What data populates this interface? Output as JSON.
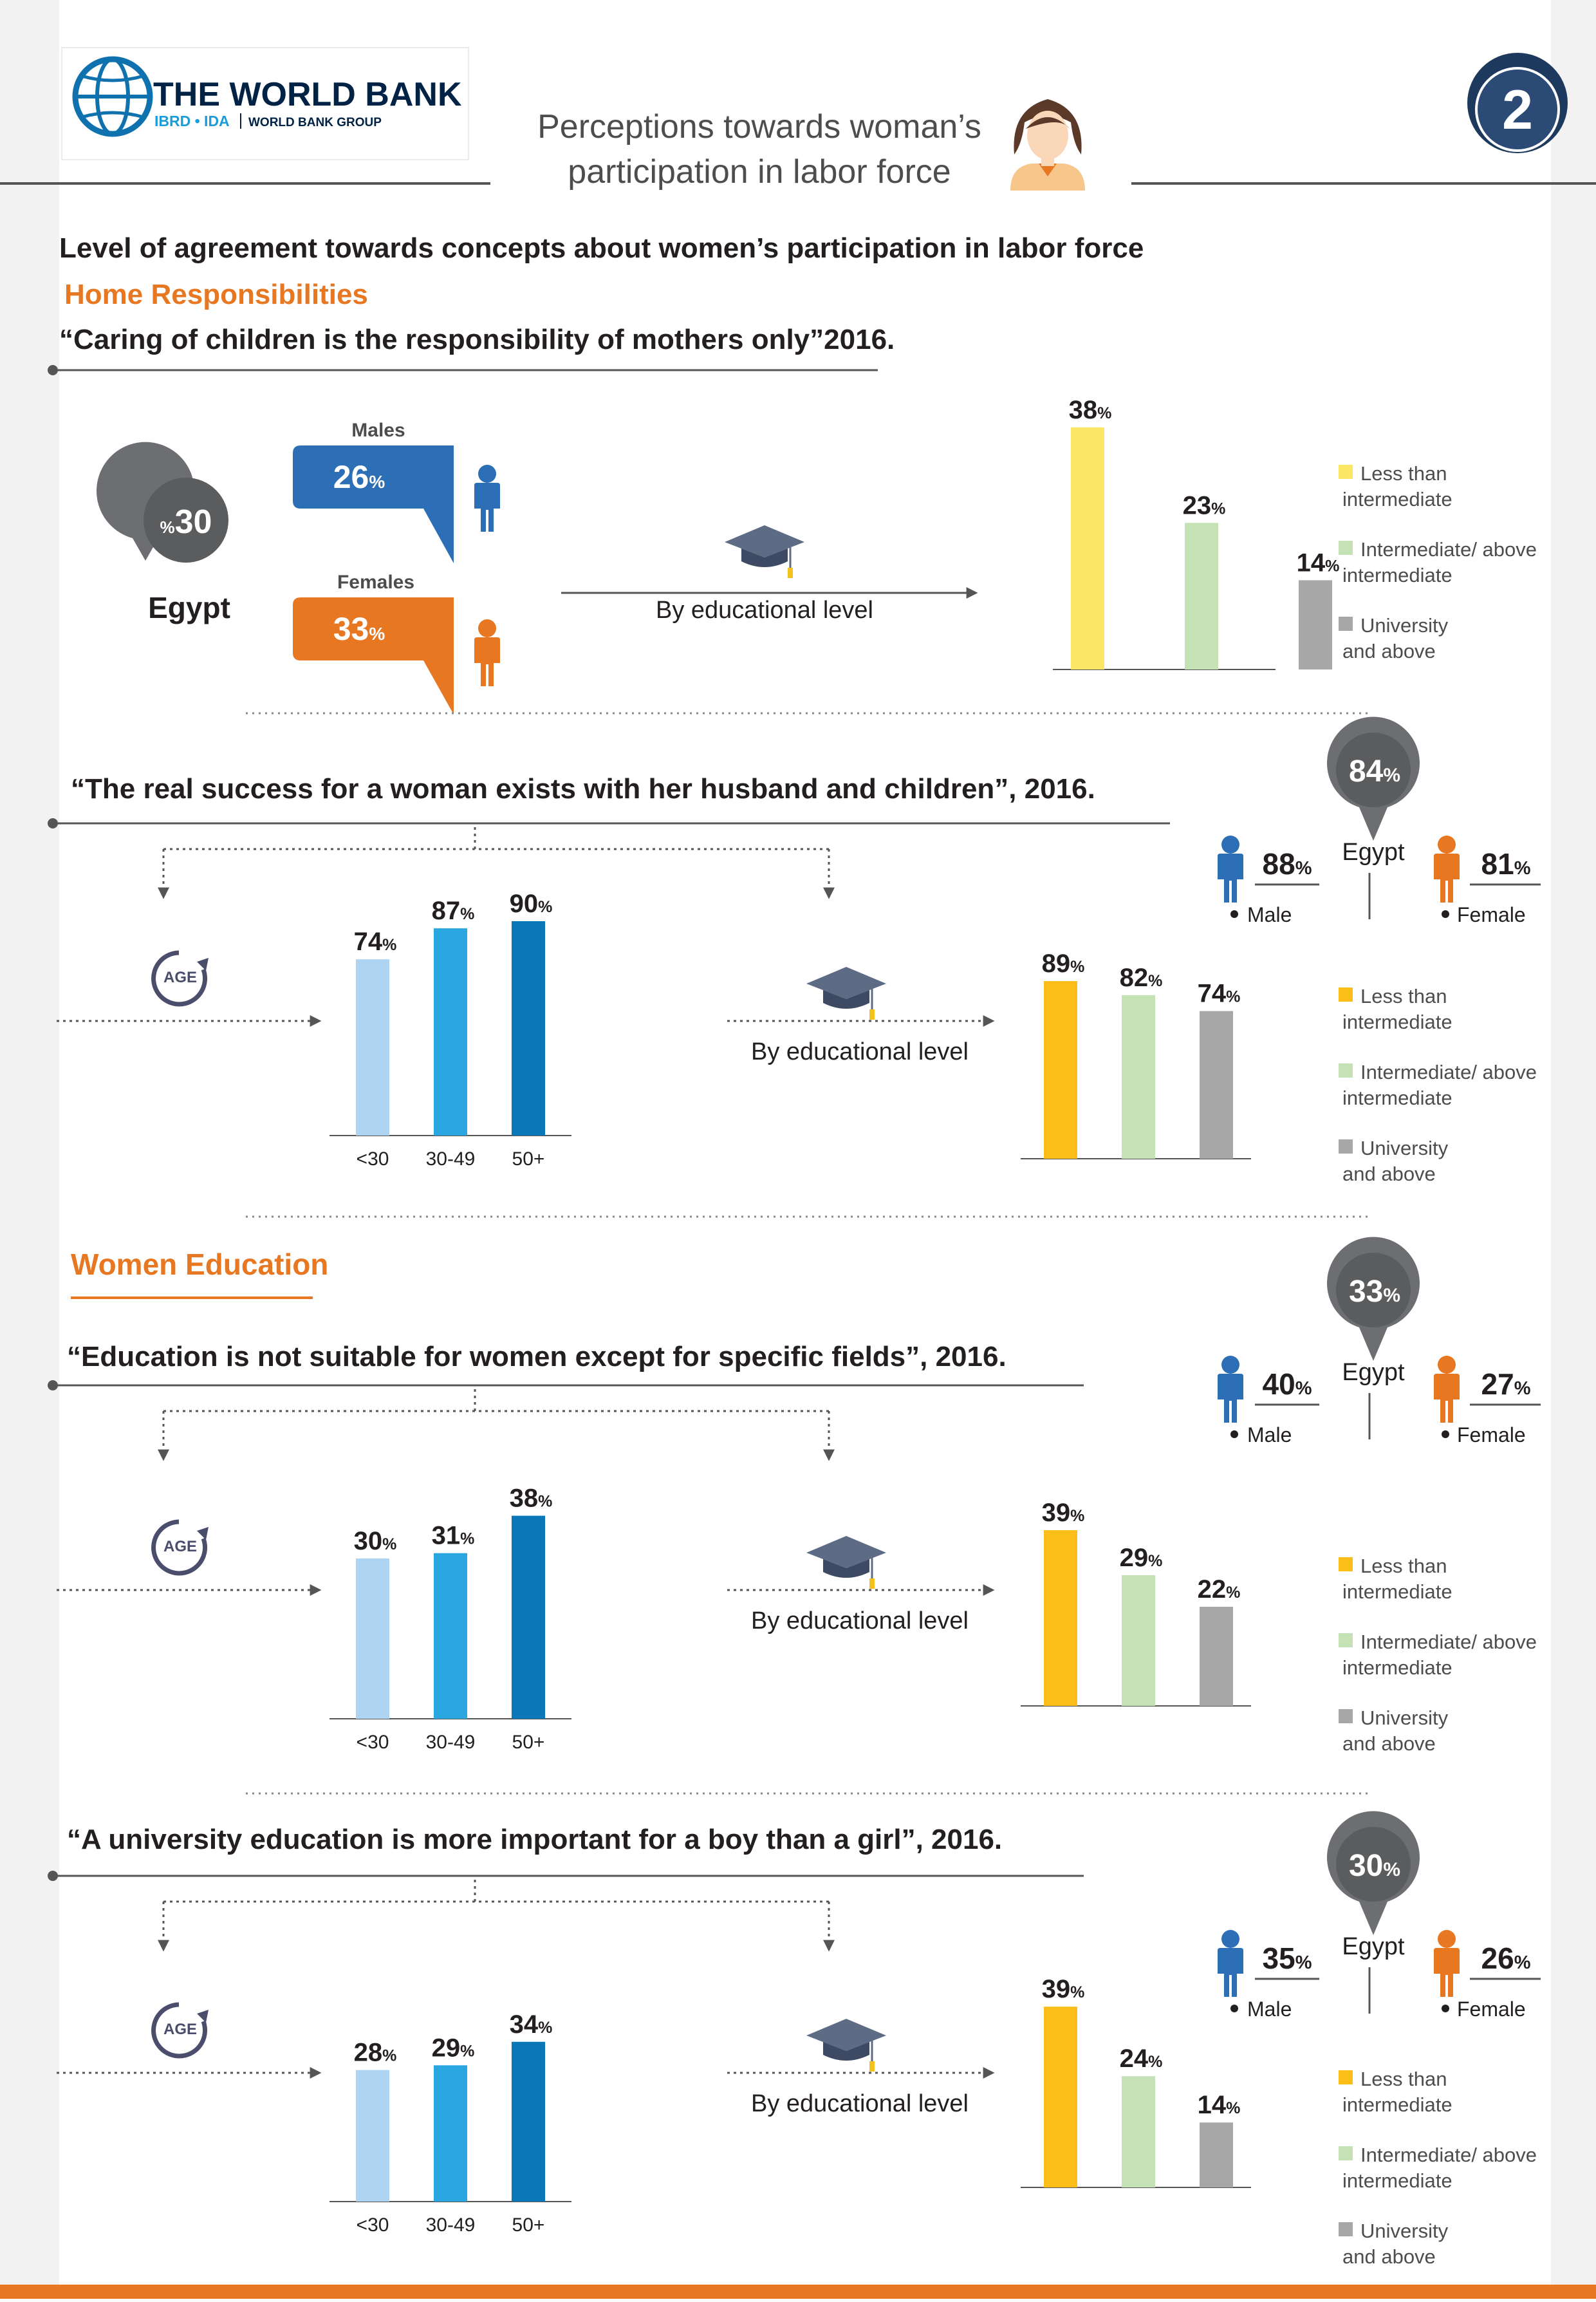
{
  "header": {
    "brand_name": "THE WORLD BANK",
    "brand_sub_left": "IBRD • IDA",
    "brand_sub_right": "WORLD BANK GROUP",
    "title_line1": "Perceptions towards woman’s",
    "title_line2": "participation in labor force",
    "page_number": "2"
  },
  "intro": {
    "heading": "Level of agreement towards concepts about women’s participation in labor force"
  },
  "common": {
    "by_education": "By educational level",
    "age_label": "AGE",
    "egypt": "Egypt",
    "male": "Male",
    "female": "Female",
    "males": "Males",
    "females": "Females",
    "pct": "%",
    "legend": [
      {
        "line1": "Less than",
        "line2": "intermediate"
      },
      {
        "line1": "Intermediate/ above",
        "line2": "intermediate"
      },
      {
        "line1": "University",
        "line2": "and above"
      }
    ]
  },
  "colors": {
    "orange": "#E87722",
    "blue_male": "#2C6FB7",
    "age_light": "#AED4F2",
    "age_mid": "#2AA7E0",
    "age_dark": "#0A77B8",
    "edu_yellow_light": "#FCE764",
    "edu_yellow": "#FBBD17",
    "edu_green": "#C4E2B5",
    "edu_gray": "#A7A7A7",
    "pin_gray": "#6D6E71"
  },
  "sections": [
    {
      "title": "Home Responsibilities"
    },
    {
      "title": "Women Education"
    }
  ],
  "chart_data": [
    {
      "type": "bar",
      "title": "“Caring of children is the responsibility of mothers only”2016.",
      "egypt": {
        "value": 30,
        "display": "30",
        "prefix": "%"
      },
      "gender": {
        "male": 26,
        "female": 33
      },
      "education": {
        "categories": [
          "Less than intermediate",
          "Intermediate/ above intermediate",
          "University and above"
        ],
        "values": [
          38,
          23,
          14
        ]
      }
    },
    {
      "type": "bar",
      "title": "“The real success for a woman exists with her husband and children”, 2016.",
      "egypt": {
        "value": 84,
        "display": "84"
      },
      "gender": {
        "male": 88,
        "female": 81
      },
      "age": {
        "categories": [
          "<30",
          "30-49",
          "50+"
        ],
        "values": [
          74,
          87,
          90
        ]
      },
      "education": {
        "categories": [
          "Less than intermediate",
          "Intermediate/ above intermediate",
          "University and above"
        ],
        "values": [
          89,
          82,
          74
        ]
      }
    },
    {
      "type": "bar",
      "title": "“Education is not suitable for women except for specific fields”, 2016.",
      "egypt": {
        "value": 33,
        "display": "33"
      },
      "gender": {
        "male": 40,
        "female": 27
      },
      "age": {
        "categories": [
          "<30",
          "30-49",
          "50+"
        ],
        "values": [
          30,
          31,
          38
        ]
      },
      "education": {
        "categories": [
          "Less than intermediate",
          "Intermediate/ above intermediate",
          "University and above"
        ],
        "values": [
          39,
          29,
          22
        ]
      }
    },
    {
      "type": "bar",
      "title": "“A university education is more important for a boy than a girl”, 2016.",
      "egypt": {
        "value": 30,
        "display": "30"
      },
      "gender": {
        "male": 35,
        "female": 26
      },
      "age": {
        "categories": [
          "<30",
          "30-49",
          "50+"
        ],
        "values": [
          28,
          29,
          34
        ]
      },
      "education": {
        "categories": [
          "Less than intermediate",
          "Intermediate/ above intermediate",
          "University and above"
        ],
        "values": [
          39,
          24,
          14
        ]
      }
    }
  ]
}
